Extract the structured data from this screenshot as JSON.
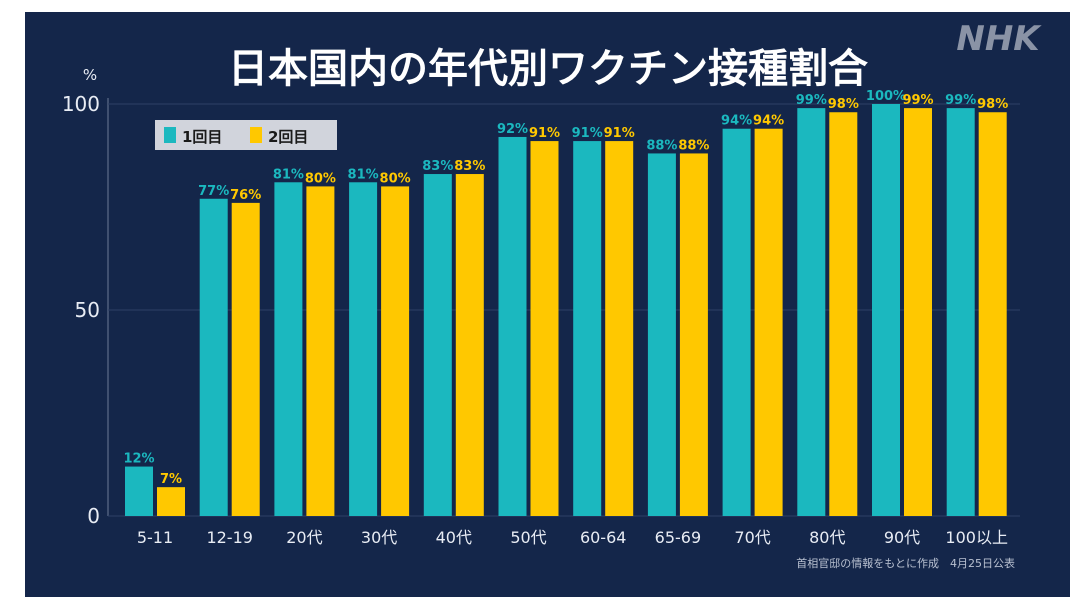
{
  "logo": "NHK",
  "source_note": "首相官邸の情報をもとに作成　4月25日公表",
  "colors": {
    "dose1": "#1bb8bf",
    "dose2": "#ffc800",
    "background": "#14264a"
  },
  "chart_data": {
    "type": "bar",
    "title": "日本国内の年代別ワクチン接種割合",
    "ylabel": "%",
    "xlabel": "",
    "ylim": [
      0,
      100
    ],
    "yticks": [
      0,
      50,
      100
    ],
    "legend_position": "top-left",
    "categories": [
      "5-11",
      "12-19",
      "20代",
      "30代",
      "40代",
      "50代",
      "60-64",
      "65-69",
      "70代",
      "80代",
      "90代",
      "100以上"
    ],
    "series": [
      {
        "name": "1回目",
        "values": [
          12,
          77,
          81,
          81,
          83,
          92,
          91,
          88,
          94,
          99,
          100,
          99
        ]
      },
      {
        "name": "2回目",
        "values": [
          7,
          76,
          80,
          80,
          83,
          91,
          91,
          88,
          94,
          98,
          99,
          98
        ]
      }
    ]
  }
}
